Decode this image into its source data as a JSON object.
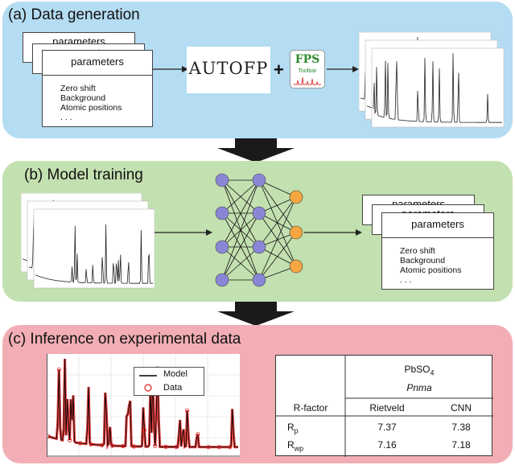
{
  "panel_a": {
    "title": "(a) Data generation",
    "card_back1_title": "parameters",
    "card_back2_title": "parameters",
    "card_front_title": "parameters",
    "items": [
      "Zero shift",
      "Background",
      "Atomic positions",
      ". . ."
    ],
    "autofp_label": "AUTOFP",
    "plus": "+",
    "fps_logo_text": "FPS",
    "fps_logo_sub": "Toolbar"
  },
  "panel_b": {
    "title": "(b) Model training",
    "card_back1_title": "parameters",
    "card_back2_title": "parameters",
    "card_front_title": "parameters",
    "items": [
      "Zero shift",
      "Background",
      "Atomic positions",
      ". . ."
    ],
    "colors": {
      "hidden_node": "#8a86d6",
      "output_node": "#f5a641"
    }
  },
  "panel_c": {
    "title": "(c) Inference on experimental data",
    "legend": {
      "model": "Model",
      "data": "Data"
    },
    "table": {
      "compound": "PbSO",
      "compound_sub": "4",
      "space_group": "Pnma",
      "header": [
        "R-factor",
        "Rietveld",
        "CNN"
      ],
      "rows": [
        {
          "label": "R",
          "sub": "p",
          "rietveld": "7.37",
          "cnn": "7.38"
        },
        {
          "label": "R",
          "sub": "wp",
          "rietveld": "7.16",
          "cnn": "7.18"
        }
      ]
    }
  },
  "colors": {
    "panel_a": "#b4dcf2",
    "panel_b": "#c3e0b0",
    "panel_c": "#f2aeb4",
    "data_marker": "#e02020"
  }
}
